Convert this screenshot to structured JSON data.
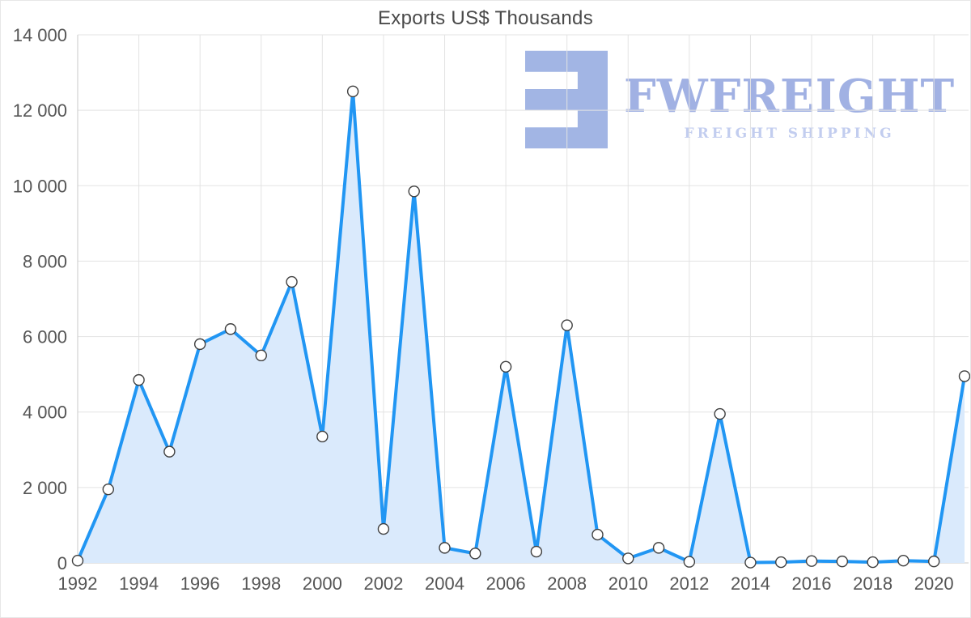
{
  "title": "Exports US$ Thousands",
  "watermark": {
    "brand": "FWFREIGHT",
    "tagline": "FREIGHT SHIPPING"
  },
  "chart_data": {
    "type": "area",
    "title": "Exports US$ Thousands",
    "x": [
      1992,
      1993,
      1994,
      1995,
      1996,
      1997,
      1998,
      1999,
      2000,
      2001,
      2002,
      2003,
      2004,
      2005,
      2006,
      2007,
      2008,
      2009,
      2010,
      2011,
      2012,
      2013,
      2014,
      2015,
      2016,
      2017,
      2018,
      2019,
      2020,
      2021
    ],
    "values": [
      60,
      1950,
      4850,
      2950,
      5800,
      6200,
      5500,
      7450,
      3350,
      12500,
      900,
      9850,
      400,
      250,
      5200,
      300,
      6300,
      750,
      120,
      400,
      30,
      3950,
      10,
      20,
      50,
      40,
      20,
      60,
      40,
      4950
    ],
    "xticks": [
      1992,
      1994,
      1996,
      1998,
      2000,
      2002,
      2004,
      2006,
      2008,
      2010,
      2012,
      2014,
      2016,
      2018,
      2020
    ],
    "ylim": [
      0,
      14000
    ],
    "ytick_step": 2000,
    "grid": true,
    "legend": "none",
    "xlabel": "",
    "ylabel": "",
    "colors": {
      "line": "#2196f3",
      "fill": "#daeafc",
      "marker": "#ffffff",
      "marker_stroke": "#3f3f3f",
      "grid": "#e3e3e3",
      "axis": "#c9c9c9",
      "label": "#555555",
      "title": "#4a4a4a",
      "watermark": "#97a9e1",
      "watermark_light": "#bcc8ee"
    }
  }
}
